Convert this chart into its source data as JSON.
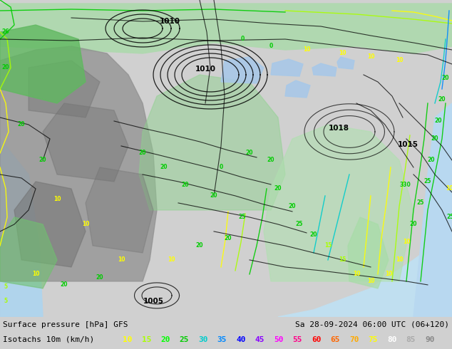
{
  "title_left": "Surface pressure [hPa] GFS",
  "title_right": "Sa 28-09-2024 06:00 UTC (06+120)",
  "legend_label": "Isotachs 10m (km/h)",
  "legend_values": [
    "10",
    "15",
    "20",
    "25",
    "30",
    "35",
    "40",
    "45",
    "50",
    "55",
    "60",
    "65",
    "70",
    "75",
    "80",
    "85",
    "90"
  ],
  "legend_colors": [
    "#ffff00",
    "#aaff00",
    "#00ff00",
    "#00cc00",
    "#00cccc",
    "#0088ff",
    "#0000ff",
    "#8800ff",
    "#ff00ff",
    "#ff0088",
    "#ff0000",
    "#ff6600",
    "#ffaa00",
    "#ffff00",
    "#ffffff",
    "#aaaaaa",
    "#888888"
  ],
  "fig_width": 6.34,
  "fig_height": 4.9,
  "dpi": 100,
  "bottom_bar_color": "#d0d0d0",
  "map_light_green": "#a8d8a0",
  "map_mid_green": "#78c878",
  "map_dark_green": "#50a850",
  "map_gray": "#888888",
  "map_ocean_blue": "#a0c8e8",
  "map_bg": "#b8ddb8"
}
